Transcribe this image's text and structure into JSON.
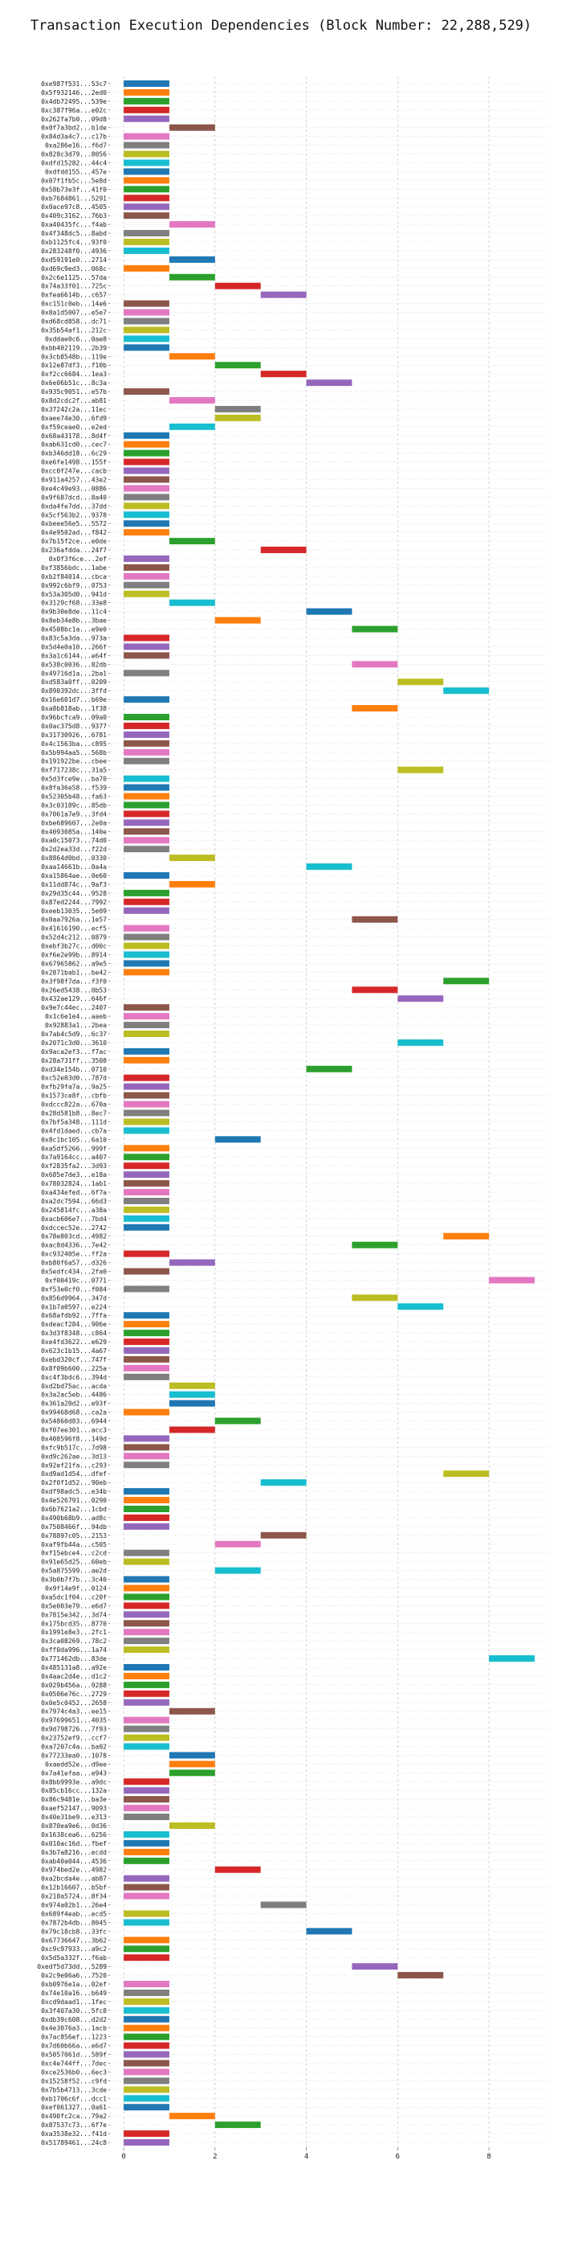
{
  "chart_data": {
    "type": "bar",
    "orientation": "horizontal-gantt",
    "title": "Transaction Execution Dependencies (Block Number: 22,288,529)",
    "xlabel": "",
    "ylabel": "",
    "xlim": [
      -0.3,
      9.3
    ],
    "xticks": [
      0,
      2,
      4,
      6,
      8
    ],
    "grid": "vertical dashed",
    "bar_width": 1,
    "palette": [
      "#1f77b4",
      "#ff7f0e",
      "#2ca02c",
      "#d62728",
      "#9467bd",
      "#8c564b",
      "#e377c2",
      "#7f7f7f",
      "#bcbd22",
      "#17becf"
    ],
    "transactions": [
      {
        "label": "0xe987f531...53c7",
        "start": 0
      },
      {
        "label": "0x5f932146...2ed0",
        "start": 0
      },
      {
        "label": "0x4db72495...539e",
        "start": 0
      },
      {
        "label": "0xc387f96a...e02c",
        "start": 0
      },
      {
        "label": "0x262fa7b0...09d8",
        "start": 0
      },
      {
        "label": "0x0f7a3bd2...b1de",
        "start": 1
      },
      {
        "label": "0x84d3a4c7...c17b",
        "start": 0
      },
      {
        "label": "0xa286e16...f6d7",
        "start": 0
      },
      {
        "label": "0x828c3d79...8056",
        "start": 0
      },
      {
        "label": "0xdfd15282...44c4",
        "start": 0
      },
      {
        "label": "0xdfdd155...457e",
        "start": 0
      },
      {
        "label": "0x07f1fb5c...5e8d",
        "start": 0
      },
      {
        "label": "0x58b73e3f...41f0",
        "start": 0
      },
      {
        "label": "0xb7684861...5291",
        "start": 0
      },
      {
        "label": "0x0ace97c8...4505",
        "start": 0
      },
      {
        "label": "0x409c3162...76b3",
        "start": 0
      },
      {
        "label": "0xa40435fc...f4ab",
        "start": 1
      },
      {
        "label": "0x4f348dc5...8abd",
        "start": 0
      },
      {
        "label": "0xb1125fc4...93f0",
        "start": 0
      },
      {
        "label": "0x283248f0...4936",
        "start": 0
      },
      {
        "label": "0xd59191e0...2714",
        "start": 1
      },
      {
        "label": "0xd69c9ed3...068c",
        "start": 0
      },
      {
        "label": "0x2c6e1125...57da",
        "start": 1
      },
      {
        "label": "0x74a33f01...725c",
        "start": 2
      },
      {
        "label": "0xfea6614b...c657",
        "start": 3
      },
      {
        "label": "0xc151c0eb...14e6",
        "start": 0
      },
      {
        "label": "0x8a1d5007...e5e7",
        "start": 0
      },
      {
        "label": "0xd68cd858...dc71",
        "start": 0
      },
      {
        "label": "0x35b54af1...212c",
        "start": 0
      },
      {
        "label": "0xddae0c6...0ae8",
        "start": 0
      },
      {
        "label": "0xbb402119...2b39",
        "start": 0
      },
      {
        "label": "0x3cb8548b...119e",
        "start": 1
      },
      {
        "label": "0x12e87df3...f10b",
        "start": 2
      },
      {
        "label": "0xf2cc6684...1ea3",
        "start": 3
      },
      {
        "label": "0x6e06b51c...8c3a",
        "start": 4
      },
      {
        "label": "0x935c9051...e57b",
        "start": 0
      },
      {
        "label": "0x8d2cdc2f...ab81",
        "start": 1
      },
      {
        "label": "0x37242c2a...11ec",
        "start": 2
      },
      {
        "label": "0xaee74e30...6fd9",
        "start": 2
      },
      {
        "label": "0xf59ceae0...e2ed",
        "start": 1
      },
      {
        "label": "0x68a43178...8d4f",
        "start": 0
      },
      {
        "label": "0xab631cd0...cec7",
        "start": 0
      },
      {
        "label": "0xb346dd18...6c29",
        "start": 0
      },
      {
        "label": "0xe6fe1498...155f",
        "start": 0
      },
      {
        "label": "0xcc0f247e...cacb",
        "start": 0
      },
      {
        "label": "0x911a4257...43e2",
        "start": 0
      },
      {
        "label": "0xe4c49e93...0886",
        "start": 0
      },
      {
        "label": "0x9f687dcd...8a40",
        "start": 0
      },
      {
        "label": "0xda4fe7dd...37dd",
        "start": 0
      },
      {
        "label": "0x5cf563b2...9378",
        "start": 0
      },
      {
        "label": "0xbeee56e5...5572",
        "start": 0
      },
      {
        "label": "0x4e9502ad...f842",
        "start": 0
      },
      {
        "label": "0x7b15f2ce...e0de",
        "start": 1
      },
      {
        "label": "0x236afdda...24f7",
        "start": 3
      },
      {
        "label": "0x0f3f6ce...2ef",
        "start": 0
      },
      {
        "label": "0xf3856bdc...1abe",
        "start": 0
      },
      {
        "label": "0xb2f84014...cbca",
        "start": 0
      },
      {
        "label": "0x992c6bf9...0753",
        "start": 0
      },
      {
        "label": "0x53a305d0...941d",
        "start": 0
      },
      {
        "label": "0x3129cf68...33e8",
        "start": 1
      },
      {
        "label": "0x9b30e8de...11c4",
        "start": 4
      },
      {
        "label": "0x8eb34e8b...3bae",
        "start": 2
      },
      {
        "label": "0x4508bc1a...e9e0",
        "start": 5
      },
      {
        "label": "0x83c5a3da...973a",
        "start": 0
      },
      {
        "label": "0x5d4e0a10...266f",
        "start": 0
      },
      {
        "label": "0x3a1c6144...e64f",
        "start": 0
      },
      {
        "label": "0x538c0036...82db",
        "start": 5
      },
      {
        "label": "0x49716d1a...2ba1",
        "start": 0
      },
      {
        "label": "0xd583a0ff...0209",
        "start": 6
      },
      {
        "label": "0x890392dc...3ffd",
        "start": 7
      },
      {
        "label": "0x16e601d7...b69e",
        "start": 0
      },
      {
        "label": "0xa8b818ab...1f38",
        "start": 5
      },
      {
        "label": "0x96bcfca9...09a0",
        "start": 0
      },
      {
        "label": "0x0ac375d8...9377",
        "start": 0
      },
      {
        "label": "0x31730926...6781",
        "start": 0
      },
      {
        "label": "0x4c1563ba...c895",
        "start": 0
      },
      {
        "label": "0x5b994aa5...568b",
        "start": 0
      },
      {
        "label": "0x191922be...cbee",
        "start": 0
      },
      {
        "label": "0xf717238c...31a5",
        "start": 6
      },
      {
        "label": "0x5d3fce9e...ba70",
        "start": 0
      },
      {
        "label": "0x8fa36e58...f539",
        "start": 0
      },
      {
        "label": "0x52305b48...fa63",
        "start": 0
      },
      {
        "label": "0x3c03189c...85db",
        "start": 0
      },
      {
        "label": "0x7061a7e9...3fd4",
        "start": 0
      },
      {
        "label": "0xbe689607...2e0a",
        "start": 0
      },
      {
        "label": "0x4093085a...140e",
        "start": 0
      },
      {
        "label": "0xa0c15073...74d0",
        "start": 0
      },
      {
        "label": "0x2d2ea33d...f22d",
        "start": 0
      },
      {
        "label": "0x8864d0bd...0330",
        "start": 1
      },
      {
        "label": "0xaa14661b...0a4a",
        "start": 4
      },
      {
        "label": "0xa15864ae...0e60",
        "start": 0
      },
      {
        "label": "0x11dd874c...9af3",
        "start": 1
      },
      {
        "label": "0x29d35c44...9528",
        "start": 0
      },
      {
        "label": "0x87ed2244...7992",
        "start": 0
      },
      {
        "label": "0xeeb13035...5e09",
        "start": 0
      },
      {
        "label": "0x0aa7926a...1e57",
        "start": 5
      },
      {
        "label": "0x41616190...ecf5",
        "start": 0
      },
      {
        "label": "0x52d4c212...0879",
        "start": 0
      },
      {
        "label": "0xebf3b27c...d00c",
        "start": 0
      },
      {
        "label": "0xf6e2e99b...8914",
        "start": 0
      },
      {
        "label": "0x67965862...a9e5",
        "start": 0
      },
      {
        "label": "0x2871bab1...be42",
        "start": 0
      },
      {
        "label": "0x3f98f7da...f3f0",
        "start": 7
      },
      {
        "label": "0x26ed5438...0b53",
        "start": 5
      },
      {
        "label": "0x432ae129...646f",
        "start": 6
      },
      {
        "label": "0x9e7c44ec...2407",
        "start": 0
      },
      {
        "label": "0x1c6e1e4...aaeb",
        "start": 0
      },
      {
        "label": "0x92883a1...2bea",
        "start": 0
      },
      {
        "label": "0x7ab4c5d9...6c37",
        "start": 0
      },
      {
        "label": "0x2071c3d0...3610",
        "start": 6
      },
      {
        "label": "0x9aca2ef3...f7ac",
        "start": 0
      },
      {
        "label": "0x28a731ff...3508",
        "start": 0
      },
      {
        "label": "0xd34e154b...0710",
        "start": 4
      },
      {
        "label": "0xc52e03d0...787d",
        "start": 0
      },
      {
        "label": "0xfb29fa7a...9a25",
        "start": 0
      },
      {
        "label": "0x1573ce8f...cbfb",
        "start": 0
      },
      {
        "label": "0xdccc822a...670a",
        "start": 0
      },
      {
        "label": "0x28d581b8...8ec7",
        "start": 0
      },
      {
        "label": "0x7bf5a348...111d",
        "start": 0
      },
      {
        "label": "0x4fd1daed...cb7a",
        "start": 0
      },
      {
        "label": "0x8c1bc105...6a10",
        "start": 2
      },
      {
        "label": "0xa5df5266...999f",
        "start": 0
      },
      {
        "label": "0x7a9164cc...a407",
        "start": 0
      },
      {
        "label": "0xf2835fa2...3d93",
        "start": 0
      },
      {
        "label": "0x685e7de3...e18a",
        "start": 0
      },
      {
        "label": "0x78032824...1ab1",
        "start": 0
      },
      {
        "label": "0xa434efed...6f7a",
        "start": 0
      },
      {
        "label": "0xa2dc7594...66d3",
        "start": 0
      },
      {
        "label": "0x245814fc...a38a",
        "start": 0
      },
      {
        "label": "0xacb606e7...7bd4",
        "start": 0
      },
      {
        "label": "0xdccec52e...2742",
        "start": 0
      },
      {
        "label": "0x78e803cd...4982",
        "start": 7
      },
      {
        "label": "0xac8d4336...7e42",
        "start": 5
      },
      {
        "label": "0xc932405e...ff2a",
        "start": 0
      },
      {
        "label": "0xb80f6a57...d326",
        "start": 1
      },
      {
        "label": "0x5edfc434...2fa0",
        "start": 0
      },
      {
        "label": "0xf00419c...0771",
        "start": 8
      },
      {
        "label": "0xf53e0cf0...f084",
        "start": 0
      },
      {
        "label": "0x856d9964...347d",
        "start": 5
      },
      {
        "label": "0x1b7a0597...e224",
        "start": 6
      },
      {
        "label": "0x68afdb92...7ffa",
        "start": 0
      },
      {
        "label": "0xdeacf284...906e",
        "start": 0
      },
      {
        "label": "0x3d3f8348...c864",
        "start": 0
      },
      {
        "label": "0xe4fd3622...e629",
        "start": 0
      },
      {
        "label": "0x623c1b15...4a67",
        "start": 0
      },
      {
        "label": "0xebd320cf...747f",
        "start": 0
      },
      {
        "label": "0x8f09b600...225a",
        "start": 0
      },
      {
        "label": "0xc4f3bdc6...394d",
        "start": 0
      },
      {
        "label": "0xd2bd75ac...acda",
        "start": 1
      },
      {
        "label": "0x3a2ac5eb...4486",
        "start": 1
      },
      {
        "label": "0x361a20d2...e93f",
        "start": 1
      },
      {
        "label": "0x99468d68...ca2a",
        "start": 0
      },
      {
        "label": "0x54860d83...6944",
        "start": 2
      },
      {
        "label": "0xf07ee301...acc3",
        "start": 1
      },
      {
        "label": "0x408596f8...149d",
        "start": 0
      },
      {
        "label": "0xfc9b517c...7d98",
        "start": 0
      },
      {
        "label": "0xd9c262ae...3d13",
        "start": 0
      },
      {
        "label": "0x92ef21fa...c293",
        "start": 0
      },
      {
        "label": "0xd9ad1d54...dfef",
        "start": 7
      },
      {
        "label": "0x2f0f1d52...90eb",
        "start": 3
      },
      {
        "label": "0xdf98adc5...e34b",
        "start": 0
      },
      {
        "label": "0x4e526791...0290",
        "start": 0
      },
      {
        "label": "0x6b7621a2...1cbd",
        "start": 0
      },
      {
        "label": "0x490b68b9...ad8c",
        "start": 0
      },
      {
        "label": "0x7508466f...94db",
        "start": 0
      },
      {
        "label": "0x78897c05...2153",
        "start": 3
      },
      {
        "label": "0xaf9fb44a...c505",
        "start": 2
      },
      {
        "label": "0xf15ebce4...c2cd",
        "start": 0
      },
      {
        "label": "0x91e65d25...60eb",
        "start": 0
      },
      {
        "label": "0x5a875599...ae2d",
        "start": 2
      },
      {
        "label": "0x3b0b7f7b...3c40",
        "start": 0
      },
      {
        "label": "0x9f14e9f...0124",
        "start": 0
      },
      {
        "label": "0xa5dc1f04...c20f",
        "start": 0
      },
      {
        "label": "0x5e003e79...e6d7",
        "start": 0
      },
      {
        "label": "0x7815e342...3d74",
        "start": 0
      },
      {
        "label": "0x175bcd35...8770",
        "start": 0
      },
      {
        "label": "0x1991e8e3...2fc1",
        "start": 0
      },
      {
        "label": "0x3ca08269...78c2",
        "start": 0
      },
      {
        "label": "0xff0da996...1a74",
        "start": 0
      },
      {
        "label": "0x771462db...83de",
        "start": 8
      },
      {
        "label": "0x485131a8...a92e",
        "start": 0
      },
      {
        "label": "0x4aac2d4e...d1c2",
        "start": 0
      },
      {
        "label": "0x029b456a...9288",
        "start": 0
      },
      {
        "label": "0x0506e76c...2729",
        "start": 0
      },
      {
        "label": "0x0e5c0452...2658",
        "start": 0
      },
      {
        "label": "0x7974c4a3...ee15",
        "start": 1
      },
      {
        "label": "0x97699651...4035",
        "start": 0
      },
      {
        "label": "0x9d798726...7f93",
        "start": 0
      },
      {
        "label": "0x23752ef9...ccf7",
        "start": 0
      },
      {
        "label": "0xa7207c4a...ba02",
        "start": 0
      },
      {
        "label": "0x77233ea0...1078",
        "start": 1
      },
      {
        "label": "0xaedd52e...d9ee",
        "start": 1
      },
      {
        "label": "0x7a41efaa...e943",
        "start": 1
      },
      {
        "label": "0x8bb9993e...a9dc",
        "start": 0
      },
      {
        "label": "0x85cb16cc...132a",
        "start": 0
      },
      {
        "label": "0x86c9481e...ba3e",
        "start": 0
      },
      {
        "label": "0xaef52147...9093",
        "start": 0
      },
      {
        "label": "0x40e31be9...e313",
        "start": 0
      },
      {
        "label": "0x870ea9e6...0d36",
        "start": 1
      },
      {
        "label": "0x1638cea6...6256",
        "start": 0
      },
      {
        "label": "0x010ac16d...fbef",
        "start": 0
      },
      {
        "label": "0x3b7a8216...ecdd",
        "start": 0
      },
      {
        "label": "0xab40a044...4536",
        "start": 0
      },
      {
        "label": "0x974bed2e...4982",
        "start": 2
      },
      {
        "label": "0xa2bcda4e...ab87",
        "start": 0
      },
      {
        "label": "0x12b16607...b5bf",
        "start": 0
      },
      {
        "label": "0x218a5724...8f34",
        "start": 0
      },
      {
        "label": "0x974a02b1...26e4",
        "start": 3
      },
      {
        "label": "0x689f4eab...ecd5",
        "start": 0
      },
      {
        "label": "0x7872b4db...8045",
        "start": 0
      },
      {
        "label": "0x79c18cb8...33fc",
        "start": 4
      },
      {
        "label": "0x67736647...3b62",
        "start": 0
      },
      {
        "label": "0xc9c97933...a9c2",
        "start": 0
      },
      {
        "label": "0x5d5a332f...f6ab",
        "start": 0
      },
      {
        "label": "0xedf5d73dd...5289",
        "start": 5
      },
      {
        "label": "0x2c9e06a6...7520",
        "start": 6
      },
      {
        "label": "0xb0976e1a...02ef",
        "start": 0
      },
      {
        "label": "0x74e10a16...b649",
        "start": 0
      },
      {
        "label": "0xcd9daad1...1fec",
        "start": 0
      },
      {
        "label": "0x3f407a30...5fc8",
        "start": 0
      },
      {
        "label": "0xdb39c608...d2d2",
        "start": 0
      },
      {
        "label": "0x4e3076a3...1acb",
        "start": 0
      },
      {
        "label": "0x7ac856ef...1223",
        "start": 0
      },
      {
        "label": "0x7d60b66a...e6d7",
        "start": 0
      },
      {
        "label": "0x5057061d...589f",
        "start": 0
      },
      {
        "label": "0xc4e744ff...7dec",
        "start": 0
      },
      {
        "label": "0xce2536b0...6ec3",
        "start": 0
      },
      {
        "label": "0x15258f52...c9fd",
        "start": 0
      },
      {
        "label": "0x7b5b4713...3cde",
        "start": 0
      },
      {
        "label": "0xb1706c6f...dcc1",
        "start": 0
      },
      {
        "label": "0xef061327...0a61",
        "start": 0
      },
      {
        "label": "0x490fc2ca...79a2",
        "start": 1
      },
      {
        "label": "0x87537c73...6f7e",
        "start": 2
      },
      {
        "label": "0xa3538e32...f41d",
        "start": 0
      },
      {
        "label": "0x51789461...24c8",
        "start": 0
      }
    ]
  }
}
